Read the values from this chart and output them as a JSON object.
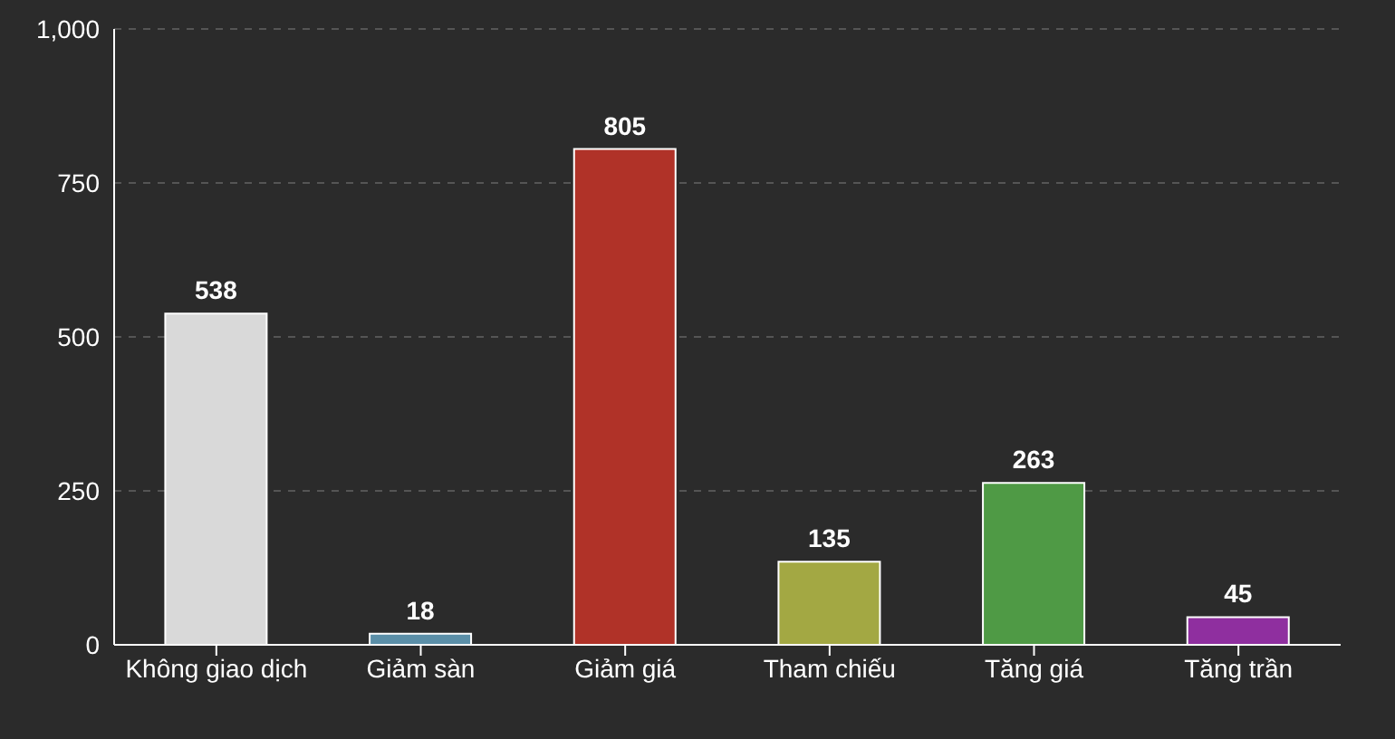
{
  "chart_data": {
    "type": "bar",
    "categories": [
      "Không giao dịch",
      "Giảm sàn",
      "Giảm giá",
      "Tham chiếu",
      "Tăng giá",
      "Tăng trần"
    ],
    "values": [
      538,
      18,
      805,
      135,
      263,
      45
    ],
    "colors": [
      "#d9d9d9",
      "#5b8fa8",
      "#b03228",
      "#a3a843",
      "#4f9a45",
      "#8f2f9f"
    ],
    "ylim": [
      0,
      1000
    ],
    "yticks": [
      0,
      250,
      500,
      750,
      {
        "value": 1000,
        "label": "1,000"
      }
    ],
    "grid": "y",
    "data_labels": true
  }
}
